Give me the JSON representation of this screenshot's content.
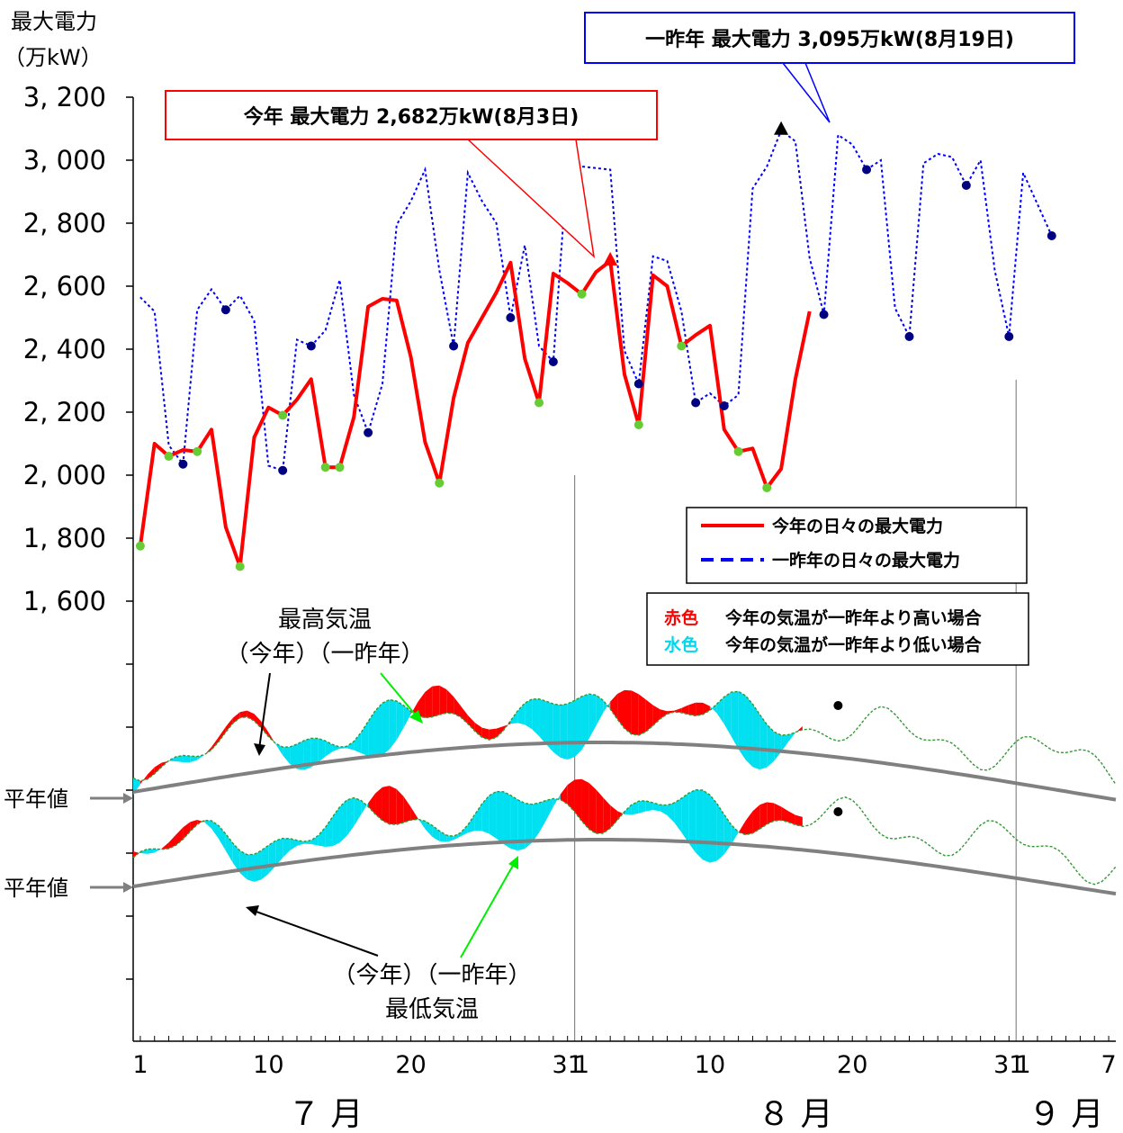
{
  "chart_data": {
    "type": "line",
    "ylabel_line1": "最大電力",
    "ylabel_line2": "（万kW）",
    "y_ticks": [
      "3, 200",
      "3, 000",
      "2, 800",
      "2, 600",
      "2, 400",
      "2, 200",
      "2, 000",
      "1, 800",
      "1, 600"
    ],
    "y_tick_values": [
      3200,
      3000,
      2800,
      2600,
      2400,
      2200,
      2000,
      1800,
      1600
    ],
    "ylim": [
      1600,
      3200
    ],
    "x_ticks": [
      "1",
      "10",
      "20",
      "31",
      "1",
      "10",
      "20",
      "31",
      "1",
      "7"
    ],
    "x_tick_days": [
      1,
      10,
      20,
      31,
      32,
      41,
      51,
      62,
      63,
      69
    ],
    "x_day_range": [
      0.5,
      69.5
    ],
    "months": [
      "７ 月",
      "８ 月",
      "９ 月"
    ],
    "month_centers": [
      14,
      47,
      66
    ],
    "month_dividers": [
      31.5,
      62.5
    ],
    "series": [
      {
        "name": "今年の日々の最大電力",
        "color": "#ff0000",
        "start_day": 1,
        "values": [
          1775,
          2100,
          2060,
          2080,
          2075,
          2145,
          1835,
          1710,
          2120,
          2215,
          2190,
          2240,
          2305,
          2025,
          2025,
          2185,
          2535,
          2560,
          2555,
          2375,
          2105,
          1975,
          2245,
          2420,
          2500,
          2580,
          2675,
          2370,
          2230,
          2640,
          2610,
          2575,
          2645,
          2680,
          2320,
          2160,
          2635,
          2600,
          2410,
          2445,
          2475,
          2145,
          2075,
          2085,
          1960,
          2020,
          2305,
          2520
        ],
        "weekend_marker_color": "#66cc33"
      },
      {
        "name": "一昨年の日々の最大電力",
        "color": "#0000ff",
        "start_day": 1,
        "values": [
          2565,
          2520,
          2095,
          2035,
          2525,
          2590,
          2525,
          2570,
          2490,
          2030,
          2015,
          2430,
          2410,
          2460,
          2620,
          2255,
          2135,
          2290,
          2795,
          2870,
          2970,
          2650,
          2410,
          2960,
          2870,
          2800,
          2500,
          2730,
          2410,
          2360,
          2990,
          2980,
          2975,
          2970,
          2395,
          2290,
          2695,
          2680,
          2520,
          2230,
          2260,
          2220,
          2255,
          2910,
          2980,
          3095,
          3060,
          2690,
          2510,
          3080,
          3050,
          2970,
          3000,
          2530,
          2440,
          2990,
          3020,
          3010,
          2920,
          3000,
          2650,
          2440,
          2960,
          2860,
          2760
        ],
        "weekend_marker_color": "#000080"
      }
    ],
    "callout_this_year": "今年 最大電力 2,682万kW(8月3日)",
    "callout_two_years_ago": "一昨年 最大電力 3,095万kW(8月19日)",
    "legend_lines": [
      "今年の日々の最大電力",
      "一昨年の日々の最大電力"
    ],
    "legend_colors": [
      {
        "swatch": "赤色",
        "text": "今年の気温が一昨年より高い場合",
        "color": "#ff0000"
      },
      {
        "swatch": "水色",
        "text": "今年の気温が一昨年より低い場合",
        "color": "#00e0f0"
      }
    ],
    "temp_high_label_line1": "最高気温",
    "temp_high_label_line2": "（今年）（一昨年）",
    "temp_low_label_line1": "（今年）（一昨年）",
    "temp_low_label_line2": "最低気温",
    "average_label": "平年値",
    "colors": {
      "this_year": "#ff0000",
      "two_years_ago": "#0000ff",
      "warmer": "#ff0000",
      "cooler": "#00e0f0",
      "normal": "#808080",
      "temp_line": "#339933"
    }
  }
}
